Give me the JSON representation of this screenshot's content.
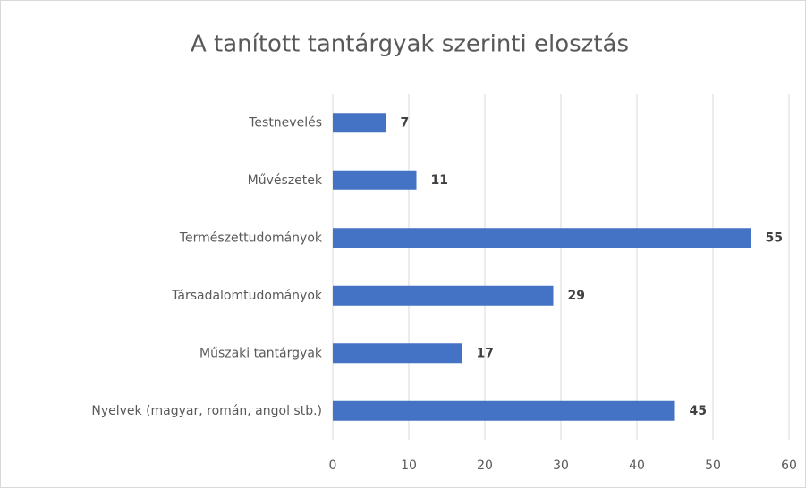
{
  "chart_data": {
    "type": "bar",
    "orientation": "horizontal",
    "title": "A tanított tantárgyak szerinti elosztás",
    "categories": [
      "Testnevelés",
      "Művészetek",
      "Természettudományok",
      "Társadalomtudományok",
      "Műszaki tantárgyak",
      "Nyelvek (magyar, román, angol stb.)"
    ],
    "values": [
      7,
      11,
      55,
      29,
      17,
      45
    ],
    "color": "#4472c4",
    "xlim": [
      0,
      60
    ],
    "xticks": [
      0,
      10,
      20,
      30,
      40,
      50,
      60
    ],
    "grid": true
  }
}
